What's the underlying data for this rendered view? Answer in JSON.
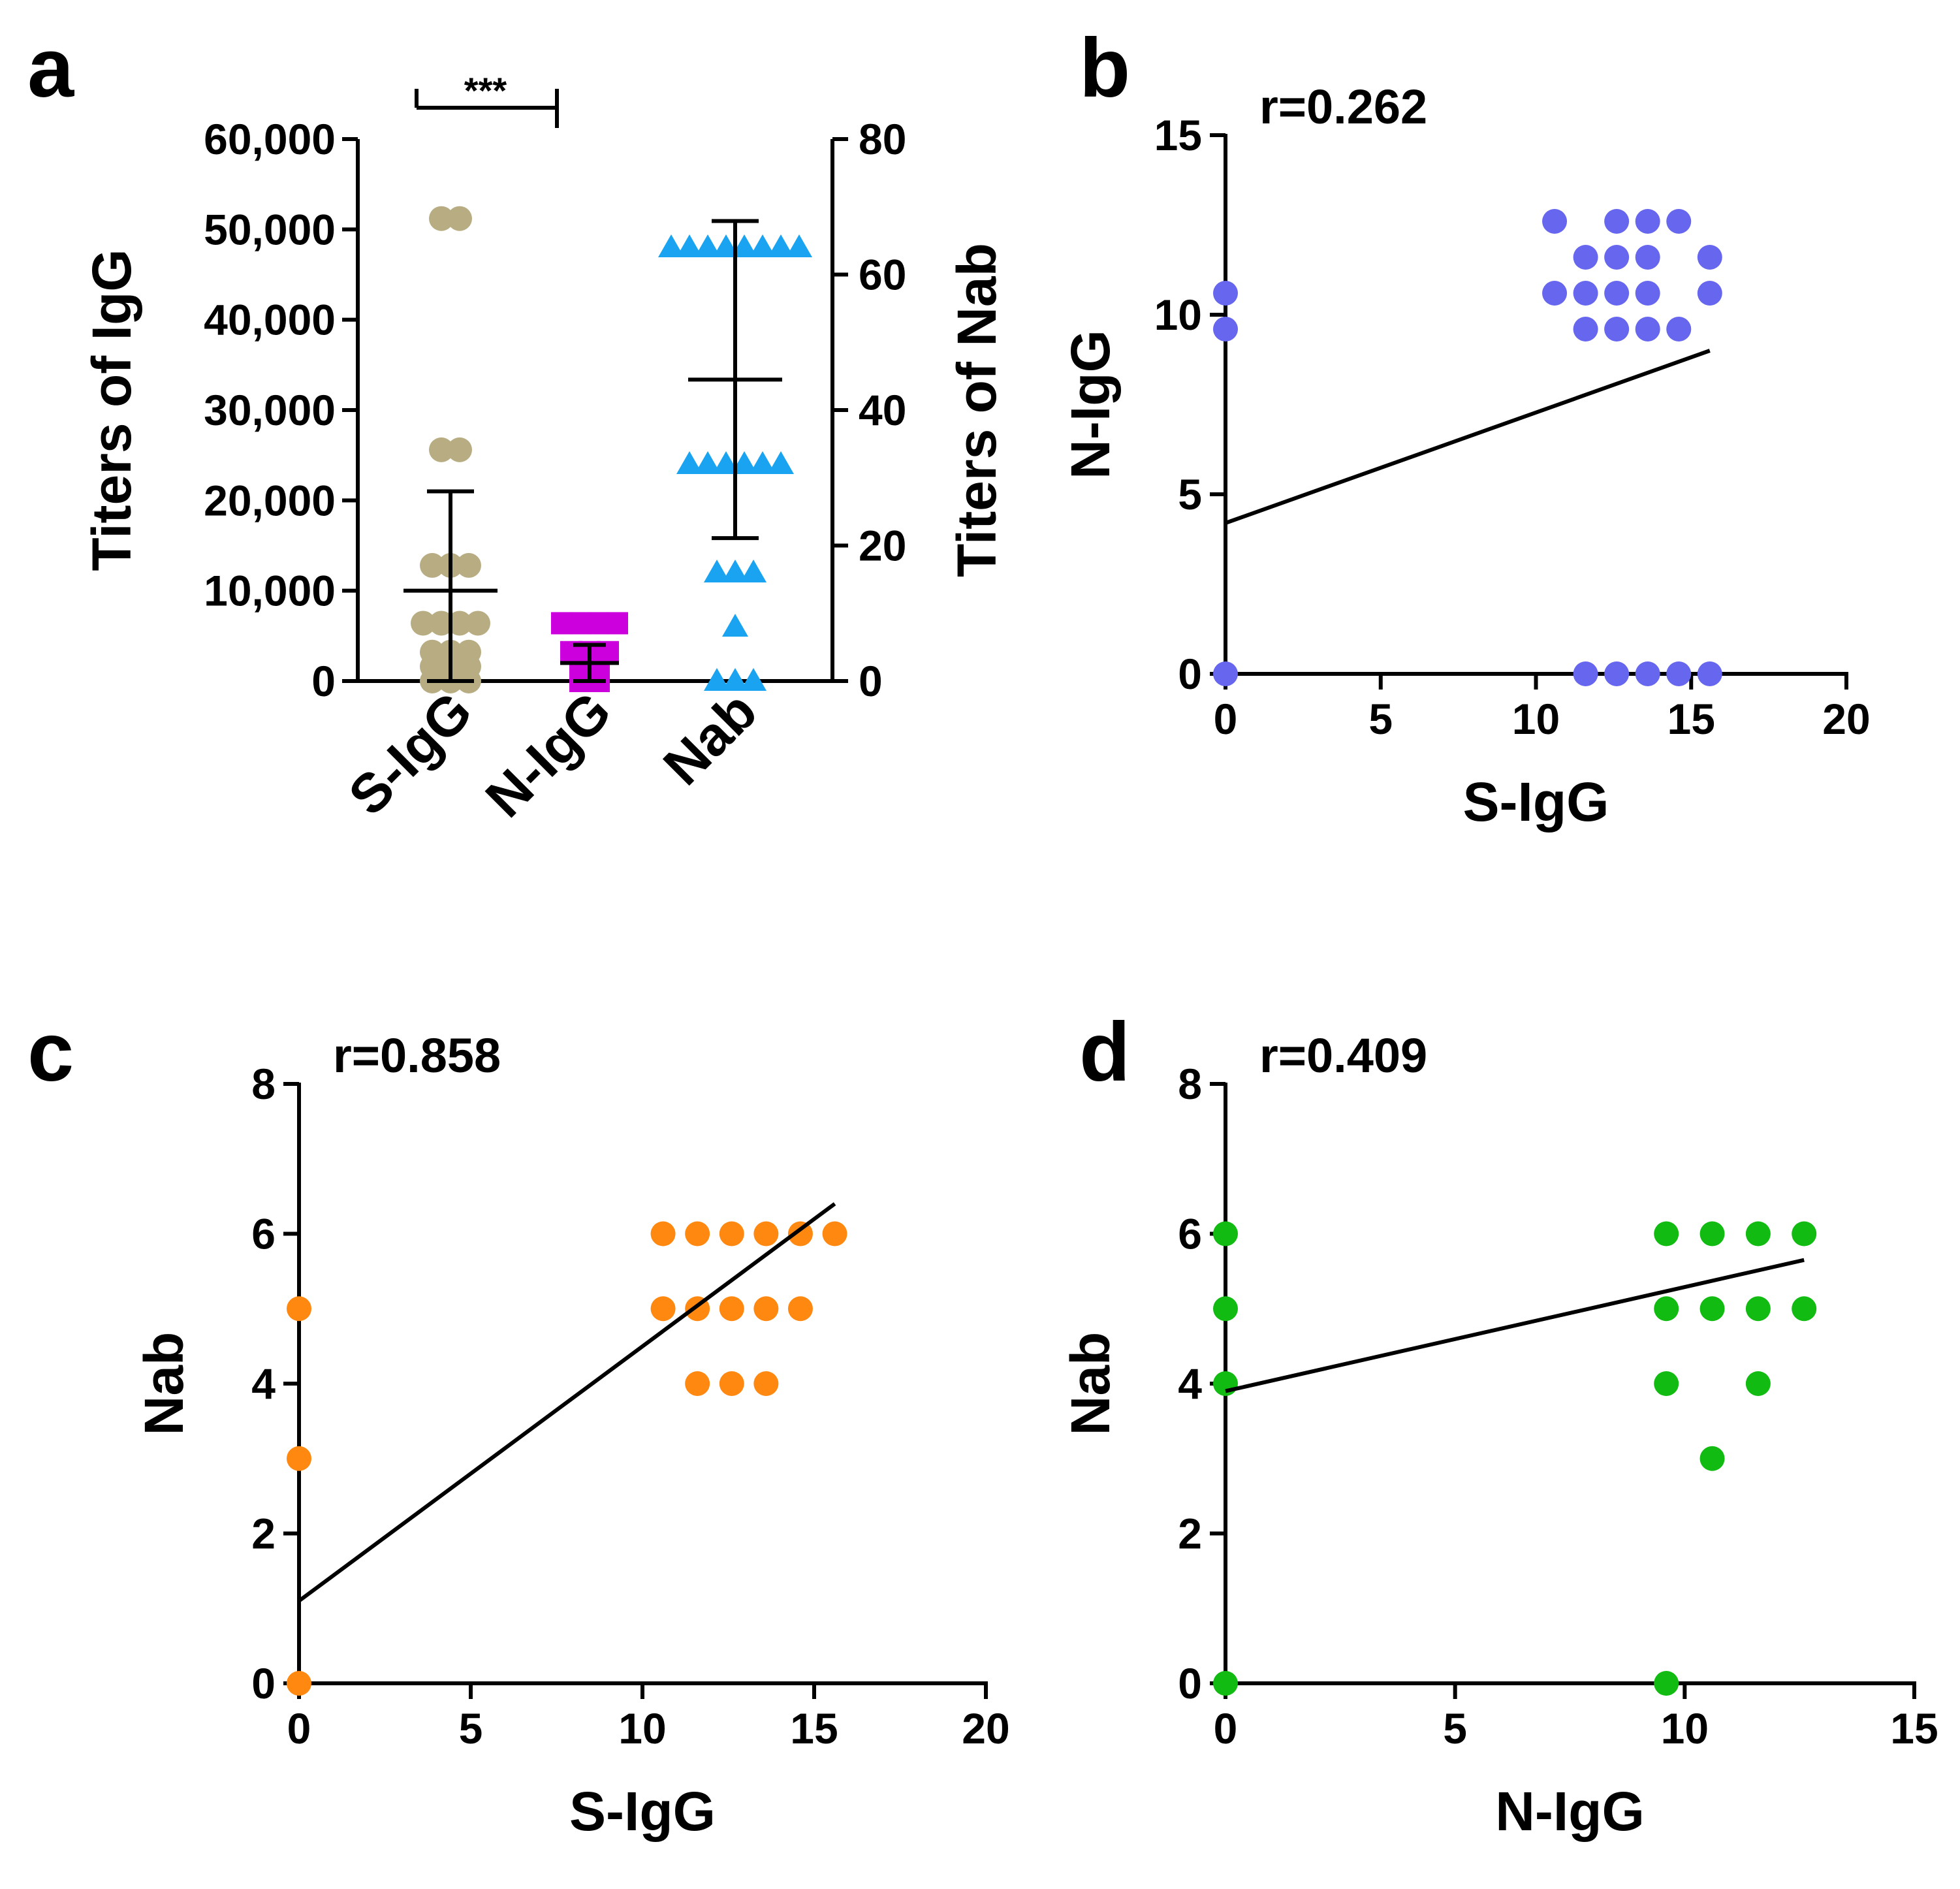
{
  "chart_data": [
    {
      "panel": "a",
      "type": "scatter",
      "categories": [
        "S-IgG",
        "N-IgG",
        "Nab"
      ],
      "ylabel": "Titers of IgG",
      "y2label": "Titers of Nab",
      "ylim": [
        0,
        60000
      ],
      "y2lim": [
        0,
        80
      ],
      "yticks": [
        "0",
        "10,000",
        "20,000",
        "30,000",
        "40,000",
        "50,000",
        "60,000"
      ],
      "y2ticks": [
        "0",
        "20",
        "40",
        "60",
        "80"
      ],
      "significance": "***",
      "series": [
        {
          "name": "S-IgG",
          "axis": "left",
          "color": "#b8ad82",
          "marker": "circle",
          "groups": [
            [
              51200,
              2
            ],
            [
              25600,
              2
            ],
            [
              12800,
              3
            ],
            [
              6400,
              4
            ],
            [
              3200,
              3
            ],
            [
              1600,
              3
            ],
            [
              0,
              3
            ]
          ],
          "mean": 10000,
          "sd": 11000
        },
        {
          "name": "N-IgG",
          "axis": "left",
          "color": "#cc00dd",
          "marker": "square",
          "groups": [
            [
              6400,
              4
            ],
            [
              3200,
              3
            ],
            [
              1600,
              2
            ],
            [
              0,
              2
            ]
          ],
          "mean": 2000,
          "sd": 2000
        },
        {
          "name": "Nab",
          "axis": "right",
          "color": "#1aa3f0",
          "marker": "triangle",
          "groups": [
            [
              64,
              8
            ],
            [
              32,
              6
            ],
            [
              16,
              3
            ],
            [
              8,
              1
            ],
            [
              0,
              3
            ]
          ],
          "mean": 44.5,
          "sd": 23.4
        }
      ]
    },
    {
      "panel": "b",
      "type": "scatter",
      "xlabel": "S-IgG",
      "ylabel": "N-IgG",
      "r": "r=0.262",
      "xlim": [
        0,
        20
      ],
      "ylim": [
        0,
        15
      ],
      "xticks": [
        "0",
        "5",
        "10",
        "15",
        "20"
      ],
      "yticks": [
        "0",
        "5",
        "10",
        "15"
      ],
      "color": "#6666ee",
      "points": [
        [
          0,
          10.6
        ],
        [
          0,
          9.6
        ],
        [
          0,
          0
        ],
        [
          10.6,
          12.6
        ],
        [
          12.6,
          12.6
        ],
        [
          13.6,
          12.6
        ],
        [
          14.6,
          12.6
        ],
        [
          11.6,
          11.6
        ],
        [
          12.6,
          11.6
        ],
        [
          13.6,
          11.6
        ],
        [
          15.6,
          11.6
        ],
        [
          10.6,
          10.6
        ],
        [
          11.6,
          10.6
        ],
        [
          12.6,
          10.6
        ],
        [
          13.6,
          10.6
        ],
        [
          15.6,
          10.6
        ],
        [
          11.6,
          9.6
        ],
        [
          12.6,
          9.6
        ],
        [
          13.6,
          9.6
        ],
        [
          14.6,
          9.6
        ],
        [
          11.6,
          0
        ],
        [
          12.6,
          0
        ],
        [
          13.6,
          0
        ],
        [
          14.6,
          0
        ],
        [
          15.6,
          0
        ]
      ],
      "fit": [
        [
          0,
          4.2
        ],
        [
          15.6,
          9.0
        ]
      ]
    },
    {
      "panel": "c",
      "type": "scatter",
      "xlabel": "S-IgG",
      "ylabel": "Nab",
      "r": "r=0.858",
      "xlim": [
        0,
        20
      ],
      "ylim": [
        0,
        8
      ],
      "xticks": [
        "0",
        "5",
        "10",
        "15",
        "20"
      ],
      "yticks": [
        "0",
        "2",
        "4",
        "6",
        "8"
      ],
      "color": "#ff8811",
      "points": [
        [
          0,
          5
        ],
        [
          0,
          3
        ],
        [
          0,
          0
        ],
        [
          10.6,
          6
        ],
        [
          11.6,
          6
        ],
        [
          12.6,
          6
        ],
        [
          13.6,
          6
        ],
        [
          14.6,
          6
        ],
        [
          15.6,
          6
        ],
        [
          10.6,
          5
        ],
        [
          11.6,
          5
        ],
        [
          12.6,
          5
        ],
        [
          13.6,
          5
        ],
        [
          14.6,
          5
        ],
        [
          11.6,
          4
        ],
        [
          12.6,
          4
        ],
        [
          13.6,
          4
        ]
      ],
      "fit": [
        [
          0,
          1.1
        ],
        [
          15.6,
          6.4
        ]
      ]
    },
    {
      "panel": "d",
      "type": "scatter",
      "xlabel": "N-IgG",
      "ylabel": "Nab",
      "r": "r=0.409",
      "xlim": [
        0,
        15
      ],
      "ylim": [
        0,
        8
      ],
      "xticks": [
        "0",
        "5",
        "10",
        "15"
      ],
      "yticks": [
        "0",
        "2",
        "4",
        "6",
        "8"
      ],
      "color": "#11bb11",
      "points": [
        [
          0,
          6
        ],
        [
          0,
          5
        ],
        [
          0,
          4
        ],
        [
          0,
          0
        ],
        [
          9.6,
          6
        ],
        [
          10.6,
          6
        ],
        [
          11.6,
          6
        ],
        [
          12.6,
          6
        ],
        [
          9.6,
          5
        ],
        [
          10.6,
          5
        ],
        [
          11.6,
          5
        ],
        [
          12.6,
          5
        ],
        [
          9.6,
          4
        ],
        [
          11.6,
          4
        ],
        [
          10.6,
          3
        ],
        [
          9.6,
          0
        ]
      ],
      "fit": [
        [
          0,
          3.9
        ],
        [
          12.6,
          5.65
        ]
      ]
    }
  ]
}
